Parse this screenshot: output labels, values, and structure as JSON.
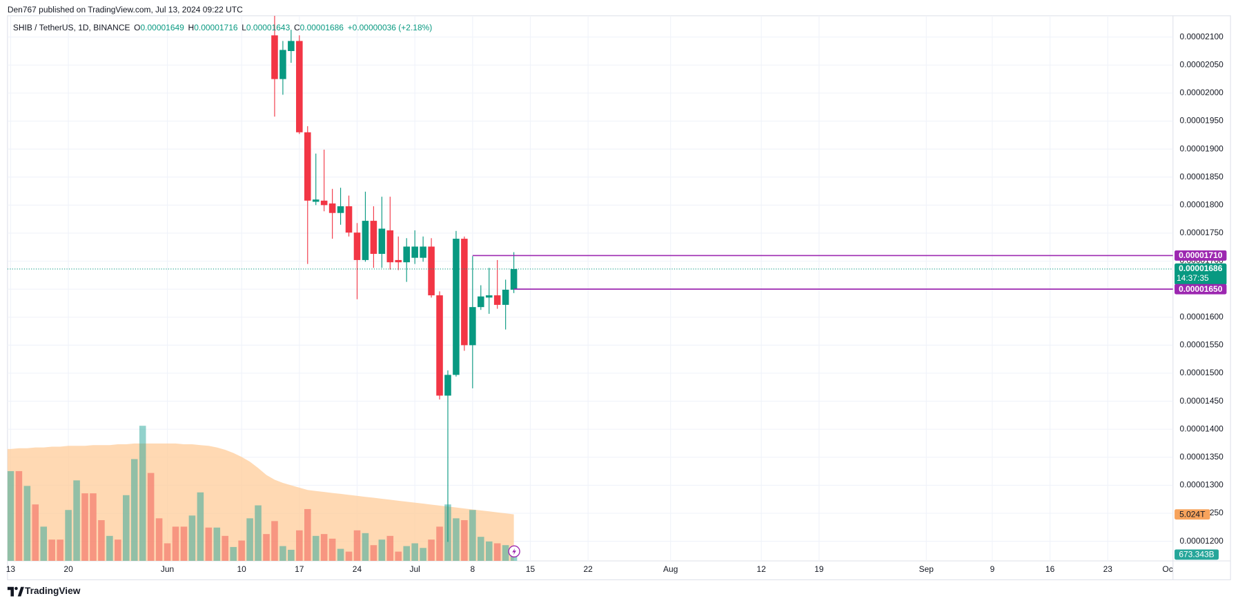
{
  "header": "Den767 published on TradingView.com, Jul 13, 2024 09:22 UTC",
  "footer": "TradingView",
  "legend": {
    "symbol": "SHIB / TetherUS, 1D, BINANCE",
    "ohlc": [
      {
        "key": "O",
        "value": "0.00001649"
      },
      {
        "key": "H",
        "value": "0.00001716"
      },
      {
        "key": "L",
        "value": "0.00001643"
      },
      {
        "key": "C",
        "value": "0.00001686"
      }
    ],
    "change": "+0.00000036 (+2.18%)"
  },
  "chart_data": {
    "type": "candlestick",
    "up_color": "#089981",
    "down_color": "#f23645",
    "grid": true,
    "x": [
      "2024-06-14",
      "2024-06-15",
      "2024-06-16",
      "2024-06-17",
      "2024-06-18",
      "2024-06-19",
      "2024-06-20",
      "2024-06-21",
      "2024-06-22",
      "2024-06-23",
      "2024-06-24",
      "2024-06-25",
      "2024-06-26",
      "2024-06-27",
      "2024-06-28",
      "2024-06-29",
      "2024-06-30",
      "2024-07-01",
      "2024-07-02",
      "2024-07-03",
      "2024-07-04",
      "2024-07-05",
      "2024-07-06",
      "2024-07-07",
      "2024-07-08",
      "2024-07-09",
      "2024-07-10",
      "2024-07-11",
      "2024-07-12",
      "2024-07-13"
    ],
    "open": [
      2.103e-05,
      2.025e-05,
      2.075e-05,
      2.093e-05,
      1.93e-05,
      1.806e-05,
      1.808e-05,
      1.803e-05,
      1.786e-05,
      1.798e-05,
      1.751e-05,
      1.702e-05,
      1.772e-05,
      1.713e-05,
      1.755e-05,
      1.702e-05,
      1.698e-05,
      1.706e-05,
      1.706e-05,
      1.726e-05,
      1.639e-05,
      1.46e-05,
      1.497e-05,
      1.74e-05,
      1.55e-05,
      1.618e-05,
      1.635e-05,
      1.639e-05,
      1.622e-05,
      1.649e-05
    ],
    "high": [
      2.138e-05,
      2.093e-05,
      2.113e-05,
      2.103e-05,
      1.941e-05,
      1.892e-05,
      1.899e-05,
      1.829e-05,
      1.831e-05,
      1.817e-05,
      1.768e-05,
      1.824e-05,
      1.798e-05,
      1.815e-05,
      1.815e-05,
      1.744e-05,
      1.741e-05,
      1.755e-05,
      1.744e-05,
      1.741e-05,
      1.646e-05,
      1.505e-05,
      1.754e-05,
      1.744e-05,
      1.709e-05,
      1.657e-05,
      1.688e-05,
      1.702e-05,
      1.667e-05,
      1.716e-05
    ],
    "low": [
      1.958e-05,
      1.997e-05,
      2.054e-05,
      1.927e-05,
      1.695e-05,
      1.8e-05,
      1.789e-05,
      1.74e-05,
      1.765e-05,
      1.744e-05,
      1.632e-05,
      1.699e-05,
      1.688e-05,
      1.688e-05,
      1.685e-05,
      1.684e-05,
      1.663e-05,
      1.695e-05,
      1.699e-05,
      1.635e-05,
      1.453e-05,
      1.199e-05,
      1.494e-05,
      1.54e-05,
      1.473e-05,
      1.613e-05,
      1.606e-05,
      1.615e-05,
      1.578e-05,
      1.643e-05
    ],
    "close": [
      2.025e-05,
      2.077e-05,
      2.093e-05,
      1.93e-05,
      1.808e-05,
      1.81e-05,
      1.8e-05,
      1.786e-05,
      1.798e-05,
      1.751e-05,
      1.702e-05,
      1.772e-05,
      1.713e-05,
      1.758e-05,
      1.698e-05,
      1.698e-05,
      1.726e-05,
      1.726e-05,
      1.726e-05,
      1.639e-05,
      1.46e-05,
      1.497e-05,
      1.74e-05,
      1.55e-05,
      1.618e-05,
      1.637e-05,
      1.639e-05,
      1.622e-05,
      1.649e-05,
      1.686e-05
    ],
    "ylim": [
      1.165e-05,
      2.138e-05
    ],
    "yticks": [
      {
        "value": 1.2e-05,
        "label": "0.00001200"
      },
      {
        "value": 1.25e-05,
        "label": "0.00001250"
      },
      {
        "value": 1.3e-05,
        "label": "0.00001300"
      },
      {
        "value": 1.35e-05,
        "label": "0.00001350"
      },
      {
        "value": 1.4e-05,
        "label": "0.00001400"
      },
      {
        "value": 1.45e-05,
        "label": "0.00001450"
      },
      {
        "value": 1.5e-05,
        "label": "0.00001500"
      },
      {
        "value": 1.55e-05,
        "label": "0.00001550"
      },
      {
        "value": 1.6e-05,
        "label": "0.00001600"
      },
      {
        "value": 1.65e-05,
        "label": "0.00001650"
      },
      {
        "value": 1.7e-05,
        "label": "0.00001700"
      },
      {
        "value": 1.75e-05,
        "label": "0.00001750"
      },
      {
        "value": 1.8e-05,
        "label": "0.00001800"
      },
      {
        "value": 1.85e-05,
        "label": "0.00001850"
      },
      {
        "value": 1.9e-05,
        "label": "0.00001900"
      },
      {
        "value": 1.95e-05,
        "label": "0.00001950"
      },
      {
        "value": 2e-05,
        "label": "0.00002000"
      },
      {
        "value": 2.05e-05,
        "label": "0.00002050"
      },
      {
        "value": 2.1e-05,
        "label": "0.00002100"
      }
    ],
    "xlim": [
      "2024-05-13",
      "2024-10-01"
    ],
    "xticks": [
      {
        "value": "2024-05-13",
        "label": "13"
      },
      {
        "value": "2024-05-20",
        "label": "20"
      },
      {
        "value": "2024-06-01",
        "label": "Jun"
      },
      {
        "value": "2024-06-10",
        "label": "10"
      },
      {
        "value": "2024-06-17",
        "label": "17"
      },
      {
        "value": "2024-06-24",
        "label": "24"
      },
      {
        "value": "2024-07-01",
        "label": "Jul"
      },
      {
        "value": "2024-07-08",
        "label": "8"
      },
      {
        "value": "2024-07-15",
        "label": "15"
      },
      {
        "value": "2024-07-22",
        "label": "22"
      },
      {
        "value": "2024-08-01",
        "label": "Aug"
      },
      {
        "value": "2024-08-12",
        "label": "12"
      },
      {
        "value": "2024-08-19",
        "label": "19"
      },
      {
        "value": "2024-09-01",
        "label": "Sep"
      },
      {
        "value": "2024-09-09",
        "label": "9"
      },
      {
        "value": "2024-09-16",
        "label": "16"
      },
      {
        "value": "2024-09-23",
        "label": "23"
      },
      {
        "value": "2024-10-01",
        "label": "Oc"
      }
    ],
    "levels": [
      {
        "value": 1.71e-05,
        "label": "0.00001710",
        "from": "2024-07-08",
        "color": "#9c27b0"
      },
      {
        "value": 1.65e-05,
        "label": "0.00001650",
        "from": "2024-07-13",
        "color": "#9c27b0"
      }
    ],
    "last_price": {
      "value": 1.686e-05,
      "label": "0.00001686",
      "countdown": "14:37:35"
    },
    "volume": {
      "x": [
        "2024-05-13",
        "2024-05-14",
        "2024-05-15",
        "2024-05-16",
        "2024-05-17",
        "2024-05-18",
        "2024-05-19",
        "2024-05-20",
        "2024-05-21",
        "2024-05-22",
        "2024-05-23",
        "2024-05-24",
        "2024-05-25",
        "2024-05-26",
        "2024-05-27",
        "2024-05-28",
        "2024-05-29",
        "2024-05-30",
        "2024-05-31",
        "2024-06-01",
        "2024-06-02",
        "2024-06-03",
        "2024-06-04",
        "2024-06-05",
        "2024-06-06",
        "2024-06-07",
        "2024-06-08",
        "2024-06-09",
        "2024-06-10",
        "2024-06-11",
        "2024-06-12",
        "2024-06-13",
        "2024-06-14",
        "2024-06-15",
        "2024-06-16",
        "2024-06-17",
        "2024-06-18",
        "2024-06-19",
        "2024-06-20",
        "2024-06-21",
        "2024-06-22",
        "2024-06-23",
        "2024-06-24",
        "2024-06-25",
        "2024-06-26",
        "2024-06-27",
        "2024-06-28",
        "2024-06-29",
        "2024-06-30",
        "2024-07-01",
        "2024-07-02",
        "2024-07-03",
        "2024-07-04",
        "2024-07-05",
        "2024-07-06",
        "2024-07-07",
        "2024-07-08",
        "2024-07-09",
        "2024-07-10",
        "2024-07-11",
        "2024-07-12",
        "2024-07-13"
      ],
      "values": [
        9700000000000,
        9700000000000,
        8100000000000,
        6100000000000,
        3700000000000,
        2300000000000,
        2300000000000,
        5500000000000,
        8700000000000,
        7300000000000,
        7300000000000,
        4400000000000,
        2700000000000,
        2300000000000,
        7100000000000,
        11000000000000,
        14600000000000,
        9500000000000,
        4600000000000,
        1900000000000,
        3700000000000,
        3700000000000,
        4900000000000,
        7400000000000,
        3600000000000,
        3600000000000,
        2700000000000,
        1500000000000,
        2200000000000,
        4600000000000,
        6000000000000,
        2900000000000,
        4300000000000,
        1600000000000,
        1200000000000,
        3300000000000,
        5600000000000,
        2700000000000,
        2900000000000,
        2400000000000,
        1300000000000,
        1000000000000,
        3300000000000,
        3000000000000,
        1700000000000,
        2300000000000,
        2700000000000,
        1000000000000,
        1600000000000,
        1900000000000,
        1400000000000,
        2300000000000,
        3700000000000,
        6100000000000,
        4600000000000,
        4400000000000,
        5500000000000,
        2600000000000,
        2100000000000,
        1900000000000,
        1700000000000,
        673343000000
      ],
      "value_labels": [
        null,
        null,
        null,
        null,
        null,
        null,
        null,
        null,
        null,
        null,
        null,
        null,
        null,
        null,
        null,
        null,
        null,
        null,
        null,
        null,
        null,
        null,
        null,
        null,
        null,
        null,
        null,
        null,
        null,
        null,
        null,
        null,
        null,
        null,
        null,
        null,
        null,
        null,
        null,
        null,
        null,
        null,
        null,
        null,
        null,
        null,
        null,
        null,
        null,
        null,
        null,
        null,
        null,
        null,
        null,
        null,
        null,
        null,
        null,
        null,
        null,
        "673.343B"
      ],
      "colors": [
        "up",
        "down",
        "up",
        "down",
        "up",
        "down",
        "down",
        "up",
        "up",
        "down",
        "down",
        "down",
        "up",
        "down",
        "up",
        "up",
        "up",
        "down",
        "down",
        "down",
        "down",
        "down",
        "up",
        "up",
        "down",
        "up",
        "down",
        "up",
        "down",
        "up",
        "up",
        "down",
        "down",
        "up",
        "up",
        "down",
        "down",
        "up",
        "down",
        "down",
        "up",
        "down",
        "down",
        "up",
        "down",
        "up",
        "down",
        "down",
        "up",
        "up",
        "up",
        "down",
        "down",
        "up",
        "up",
        "down",
        "up",
        "up",
        "up",
        "down",
        "up",
        "up"
      ],
      "up_color": "rgba(38,166,154,0.5)",
      "down_color": "rgba(239,83,80,0.5)",
      "vlim": [
        0,
        58900000000000
      ],
      "ma": {
        "color": "#ffcc99",
        "values": [
          12090000000000,
          12170000000000,
          12170000000000,
          12260000000000,
          12260000000000,
          12340000000000,
          12340000000000,
          12430000000000,
          12430000000000,
          12430000000000,
          12510000000000,
          12510000000000,
          12510000000000,
          12600000000000,
          12600000000000,
          12680000000000,
          12680000000000,
          12680000000000,
          12680000000000,
          12680000000000,
          12680000000000,
          12600000000000,
          12600000000000,
          12510000000000,
          12430000000000,
          12260000000000,
          12000000000000,
          11660000000000,
          11230000000000,
          10720000000000,
          10040000000000,
          9280000000000,
          8770000000000,
          8430000000000,
          8170000000000,
          7910000000000,
          7660000000000,
          7550000000000,
          7450000000000,
          7340000000000,
          7240000000000,
          7130000000000,
          7030000000000,
          6920000000000,
          6820000000000,
          6710000000000,
          6610000000000,
          6500000000000,
          6400000000000,
          6290000000000,
          6190000000000,
          6080000000000,
          5980000000000,
          5870000000000,
          5770000000000,
          5660000000000,
          5560000000000,
          5450000000000,
          5350000000000,
          5240000000000,
          5140000000000,
          5024000000000
        ],
        "value_labels": [
          null,
          null,
          null,
          null,
          null,
          null,
          null,
          null,
          null,
          null,
          null,
          null,
          null,
          null,
          null,
          null,
          null,
          null,
          null,
          null,
          null,
          null,
          null,
          null,
          null,
          null,
          null,
          null,
          null,
          null,
          null,
          null,
          null,
          null,
          null,
          null,
          null,
          null,
          null,
          null,
          null,
          null,
          null,
          null,
          null,
          null,
          null,
          null,
          null,
          null,
          null,
          null,
          null,
          null,
          null,
          null,
          null,
          null,
          null,
          null,
          null,
          "5.024T"
        ],
        "label_color": "#f7a35c"
      }
    }
  }
}
